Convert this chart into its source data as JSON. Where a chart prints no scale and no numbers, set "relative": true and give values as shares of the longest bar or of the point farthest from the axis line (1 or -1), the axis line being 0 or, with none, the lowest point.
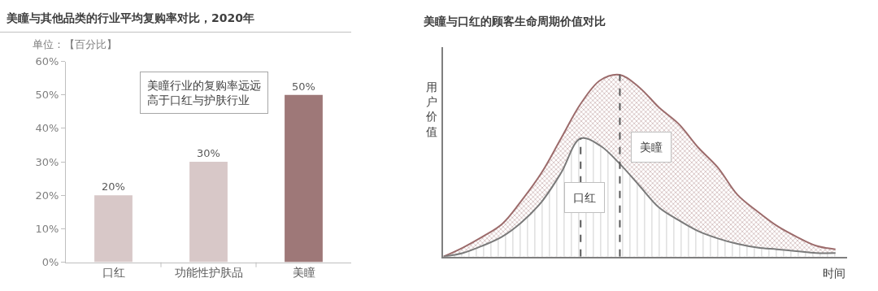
{
  "chart_data": [
    {
      "type": "bar",
      "title": "美瞳与其他品类的行业平均复购率对比，2020年",
      "subtitle": "单位：【百分比】",
      "categories": [
        "口红",
        "功能性护肤品",
        "美瞳"
      ],
      "values": [
        20,
        30,
        50
      ],
      "colors": [
        "#d8c8c8",
        "#d8c8c8",
        "#9e7878"
      ],
      "value_labels": [
        "20%",
        "30%",
        "50%"
      ],
      "ylim": [
        0,
        60
      ],
      "yticks": [
        {
          "value": 0,
          "label": "0%"
        },
        {
          "value": 10,
          "label": "10%"
        },
        {
          "value": 20,
          "label": "20%"
        },
        {
          "value": 30,
          "label": "30%"
        },
        {
          "value": 40,
          "label": "40%"
        },
        {
          "value": 50,
          "label": "50%"
        },
        {
          "value": 60,
          "label": "60%"
        }
      ],
      "annotations": [
        "美瞳行业的复购率远远高于口红与护肤行业"
      ]
    },
    {
      "type": "area",
      "title": "美瞳与口红的顾客生命周期价值对比",
      "xlabel": "时间",
      "ylabel": "用户价值",
      "relative": true,
      "categories": [
        null,
        null,
        null,
        null,
        null,
        null,
        null,
        null,
        null,
        null,
        null,
        null,
        null,
        null,
        null,
        null,
        null,
        null,
        null,
        null,
        null
      ],
      "series": [
        {
          "name": "美瞳",
          "color": "#9c6b6b",
          "values": [
            0,
            0.05,
            0.11,
            0.18,
            0.31,
            0.46,
            0.65,
            0.84,
            0.97,
            1.0,
            0.93,
            0.82,
            0.73,
            0.6,
            0.49,
            0.34,
            0.25,
            0.17,
            0.11,
            0.06,
            0.04
          ]
        },
        {
          "name": "口红",
          "color": "#7a7a7a",
          "values": [
            0,
            0.02,
            0.06,
            0.11,
            0.19,
            0.3,
            0.46,
            0.65,
            0.61,
            0.51,
            0.39,
            0.27,
            0.2,
            0.14,
            0.1,
            0.07,
            0.05,
            0.04,
            0.03,
            0.02,
            0.02
          ]
        }
      ]
    }
  ]
}
